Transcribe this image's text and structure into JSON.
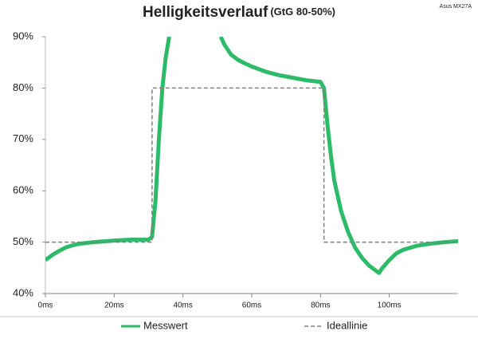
{
  "chart_data": {
    "type": "line",
    "title": "Helligkeitsverlauf",
    "subtitle": "(GtG 80-50%)",
    "source": "Asus MX27A",
    "xlim": [
      0,
      120
    ],
    "xticks": [
      {
        "value": 0,
        "label": "0ms"
      },
      {
        "value": 20,
        "label": "20ms"
      },
      {
        "value": 40,
        "label": "40ms"
      },
      {
        "value": 60,
        "label": "60ms"
      },
      {
        "value": 80,
        "label": "80ms"
      },
      {
        "value": 100,
        "label": "100ms"
      }
    ],
    "ylim": [
      40,
      90
    ],
    "yticks": [
      {
        "value": 40,
        "label": "40%"
      },
      {
        "value": 50,
        "label": "50%"
      },
      {
        "value": 60,
        "label": "60%"
      },
      {
        "value": 70,
        "label": "70%"
      },
      {
        "value": 80,
        "label": "80%"
      },
      {
        "value": 90,
        "label": "90%"
      }
    ],
    "legend": "bottom",
    "series": [
      {
        "name": "Messwert",
        "color": "#2dbb6a",
        "dashed": false,
        "x": [
          0,
          2,
          4,
          6,
          8,
          10,
          14,
          20,
          25,
          30,
          31,
          32,
          33,
          34,
          35,
          36,
          43,
          51,
          52,
          54,
          56,
          58,
          60,
          64,
          68,
          72,
          76,
          80,
          81,
          82,
          83,
          84,
          86,
          88,
          90,
          92,
          94,
          96,
          97,
          98,
          100,
          102,
          104,
          108,
          112,
          116,
          120
        ],
        "values": [
          46.5,
          47.5,
          48.3,
          49,
          49.4,
          49.7,
          50,
          50.3,
          50.5,
          50.5,
          51,
          58,
          70,
          80,
          86,
          90,
          null,
          90,
          88.5,
          86.5,
          85.5,
          84.8,
          84.2,
          83.2,
          82.5,
          82,
          81.5,
          81.2,
          80,
          73,
          67,
          62,
          56,
          52,
          49,
          47,
          45.5,
          44.5,
          44,
          45,
          46.5,
          47.8,
          48.5,
          49.3,
          49.7,
          50,
          50.2
        ]
      },
      {
        "name": "Ideallinie",
        "color": "#808080",
        "dashed": true,
        "x": [
          0,
          31,
          31,
          81,
          81,
          120
        ],
        "values": [
          50,
          50,
          80,
          80,
          50,
          50
        ]
      }
    ]
  }
}
